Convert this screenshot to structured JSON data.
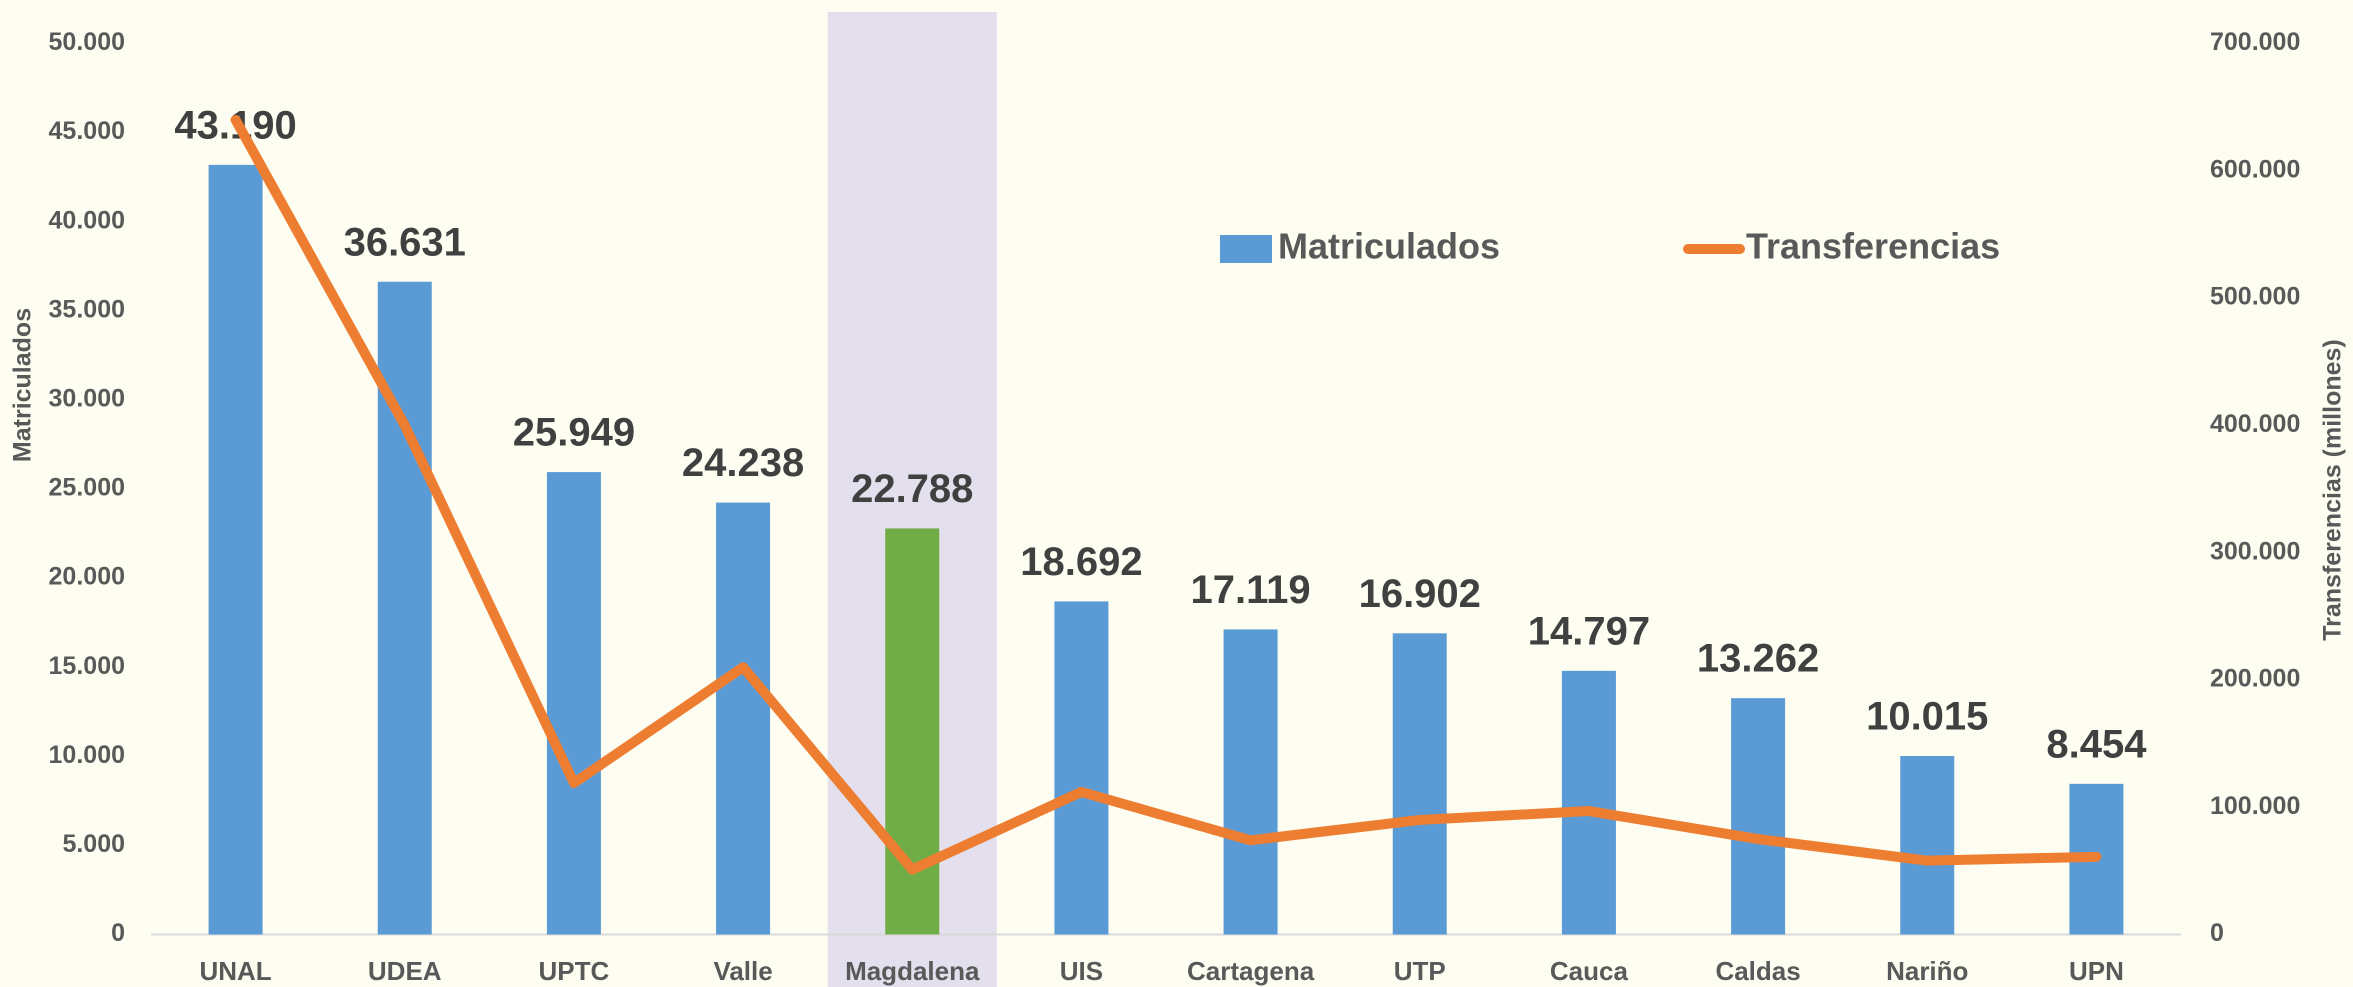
{
  "chart_data": {
    "type": "bar_line",
    "categories": [
      "UNAL",
      "UDEA",
      "UPTC",
      "Valle",
      "Magdalena",
      "UIS",
      "Cartagena",
      "UTP",
      "Cauca",
      "Caldas",
      "Nariño",
      "UPN"
    ],
    "series": [
      {
        "name": "Matriculados",
        "type": "bar",
        "axis": "y",
        "color": "#5b9bd5",
        "colors": [
          "#5b9bd5",
          "#5b9bd5",
          "#5b9bd5",
          "#5b9bd5",
          "#70ad47",
          "#5b9bd5",
          "#5b9bd5",
          "#5b9bd5",
          "#5b9bd5",
          "#5b9bd5",
          "#5b9bd5",
          "#5b9bd5"
        ],
        "values": [
          43190,
          36631,
          25949,
          24238,
          22788,
          18692,
          17119,
          16902,
          14797,
          13262,
          10015,
          8454
        ],
        "value_labels": [
          "43.190",
          "36.631",
          "25.949",
          "24.238",
          "22.788",
          "18.692",
          "17.119",
          "16.902",
          "14.797",
          "13.262",
          "10.015",
          "8.454"
        ]
      },
      {
        "name": "Transferencias",
        "type": "line",
        "axis": "y2",
        "color": "#ed7d31",
        "values": [
          640000,
          400000,
          119000,
          210000,
          51000,
          112000,
          74000,
          90000,
          97000,
          75000,
          58000,
          61000
        ]
      }
    ],
    "highlight": {
      "category_index": 4,
      "color": "#e4dfec"
    },
    "ylabel": "Matriculados",
    "y2label": "Transferencias (millones)",
    "ylim": [
      0,
      50000
    ],
    "yticks": [
      0,
      {
        "value": 5000,
        "label": "5.000"
      },
      {
        "value": 10000,
        "label": "10.000"
      },
      {
        "value": 15000,
        "label": "15.000"
      },
      {
        "value": 20000,
        "label": "20.000"
      },
      {
        "value": 25000,
        "label": "25.000"
      },
      {
        "value": 30000,
        "label": "30.000"
      },
      {
        "value": 35000,
        "label": "35.000"
      },
      {
        "value": 40000,
        "label": "40.000"
      },
      {
        "value": 45000,
        "label": "45.000"
      },
      {
        "value": 50000,
        "label": "50.000"
      }
    ],
    "y2lim": [
      0,
      700000
    ],
    "y2ticks": [
      0,
      {
        "value": 100000,
        "label": "100.000"
      },
      {
        "value": 200000,
        "label": "200.000"
      },
      {
        "value": 300000,
        "label": "300.000"
      },
      {
        "value": 400000,
        "label": "400.000"
      },
      {
        "value": 500000,
        "label": "500.000"
      },
      {
        "value": 600000,
        "label": "600.000"
      },
      {
        "value": 700000,
        "label": "700.000"
      }
    ],
    "grid": false,
    "legend": "top-right"
  }
}
